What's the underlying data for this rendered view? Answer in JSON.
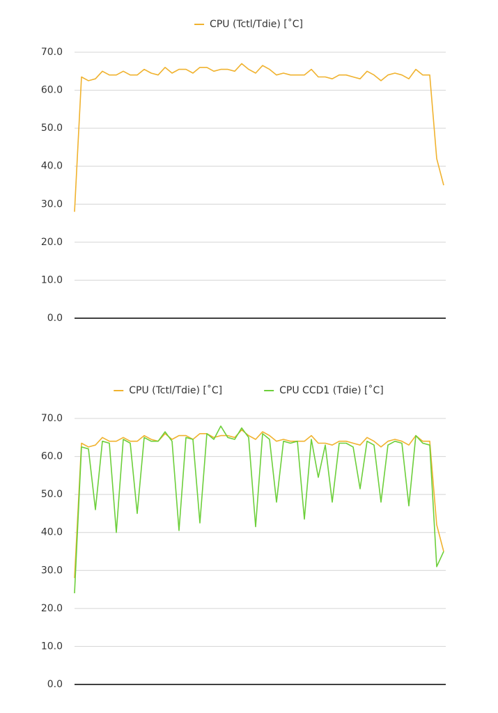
{
  "chart_data": [
    {
      "type": "line",
      "series": [
        {
          "name": "CPU (Tctl/Tdie) [˚C]",
          "color": "#f0b22e",
          "values": [
            28,
            63.5,
            62.5,
            63,
            65,
            64,
            64,
            65,
            64,
            64,
            65.5,
            64.5,
            64,
            66,
            64.5,
            65.5,
            65.5,
            64.5,
            66,
            66,
            65,
            65.5,
            65.5,
            65,
            67,
            65.5,
            64.5,
            66.5,
            65.5,
            64,
            64.5,
            64,
            64,
            64,
            65.5,
            63.5,
            63.5,
            63,
            64,
            64,
            63.5,
            63,
            65,
            64,
            62.5,
            64,
            64.5,
            64,
            63,
            65.5,
            64,
            64,
            42,
            35
          ]
        }
      ],
      "ylim": [
        0,
        70
      ],
      "yticks": [
        {
          "value": 0,
          "label": "0.0"
        },
        {
          "value": 10,
          "label": "10.0"
        },
        {
          "value": 20,
          "label": "20.0"
        },
        {
          "value": 30,
          "label": "30.0"
        },
        {
          "value": 40,
          "label": "40.0"
        },
        {
          "value": 50,
          "label": "50.0"
        },
        {
          "value": 60,
          "label": "60.0"
        },
        {
          "value": 70,
          "label": "70.0"
        }
      ],
      "grid": true,
      "legend": "top"
    },
    {
      "type": "line",
      "series": [
        {
          "name": "CPU (Tctl/Tdie) [˚C]",
          "color": "#f0b22e",
          "values": [
            28,
            63.5,
            62.5,
            63,
            65,
            64,
            64,
            65,
            64,
            64,
            65.5,
            64.5,
            64,
            66,
            64.5,
            65.5,
            65.5,
            64.5,
            66,
            66,
            65,
            65.5,
            65.5,
            65,
            67,
            65.5,
            64.5,
            66.5,
            65.5,
            64,
            64.5,
            64,
            64,
            64,
            65.5,
            63.5,
            63.5,
            63,
            64,
            64,
            63.5,
            63,
            65,
            64,
            62.5,
            64,
            64.5,
            64,
            63,
            65.5,
            64,
            64,
            42,
            35
          ]
        },
        {
          "name": "CPU CCD1 (Tdie) [˚C]",
          "color": "#6ccf3a",
          "values": [
            24,
            62.5,
            62,
            46,
            64,
            63.5,
            40,
            64.5,
            63.5,
            45,
            65,
            64,
            64,
            66.5,
            64,
            40.5,
            65,
            64.5,
            42.5,
            66,
            64.5,
            68,
            65,
            64.5,
            67.5,
            65,
            41.5,
            66,
            64.5,
            48,
            64,
            63.5,
            64,
            43.5,
            64.5,
            54.5,
            63,
            48,
            63.5,
            63.5,
            62.5,
            51.5,
            64,
            63,
            48,
            63,
            64,
            63.5,
            47,
            65.5,
            63.5,
            63,
            31,
            35
          ]
        }
      ],
      "ylim": [
        0,
        70
      ],
      "yticks": [
        {
          "value": 0,
          "label": "0.0"
        },
        {
          "value": 10,
          "label": "10.0"
        },
        {
          "value": 20,
          "label": "20.0"
        },
        {
          "value": 30,
          "label": "30.0"
        },
        {
          "value": 40,
          "label": "40.0"
        },
        {
          "value": 50,
          "label": "50.0"
        },
        {
          "value": 60,
          "label": "60.0"
        },
        {
          "value": 70,
          "label": "70.0"
        }
      ],
      "grid": true,
      "legend": "top"
    }
  ]
}
